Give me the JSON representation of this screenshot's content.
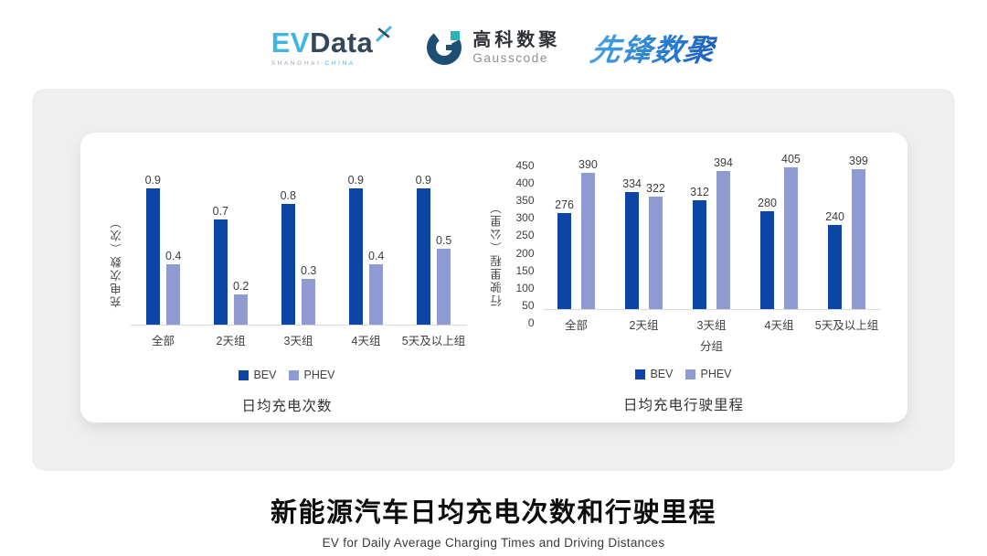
{
  "header": {
    "evdata": {
      "ev": "EV",
      "data": "Data",
      "sub_left": "SHANGHAI",
      "sub_right": "CHINA"
    },
    "gausscode": {
      "cn": "高科数聚",
      "en": "Gausscode"
    },
    "pioneer": {
      "text": "先锋数聚"
    }
  },
  "colors": {
    "bev": "#0c45a5",
    "phev": "#8f9ad0",
    "baseline": "#d9d9d9",
    "panel_background": "#efefef",
    "evdata_cyan": "#3eb6e0",
    "evdata_dark": "#33475c",
    "gausscode_dark_blue": "#1d4f73",
    "gausscode_teal": "#2ab3b8",
    "pioneer_blue": "#2f86d6"
  },
  "chart_data": [
    {
      "type": "bar",
      "title": "日均充电次数",
      "ylabel": "充电次数（次）",
      "xlabel": "",
      "categories": [
        "全部",
        "2天组",
        "3天组",
        "4天组",
        "5天及以上组"
      ],
      "series": [
        {
          "name": "BEV",
          "values": [
            0.9,
            0.7,
            0.8,
            0.9,
            0.9
          ]
        },
        {
          "name": "PHEV",
          "values": [
            0.4,
            0.2,
            0.3,
            0.4,
            0.5
          ]
        }
      ],
      "ylim": [
        0,
        1
      ],
      "value_labels": true,
      "grid": false,
      "legend_position": "bottom"
    },
    {
      "type": "bar",
      "title": "日均充电行驶里程",
      "ylabel": "行驶里程（公里）",
      "xlabel": "分组",
      "categories": [
        "全部",
        "2天组",
        "3天组",
        "4天组",
        "5天及以上组"
      ],
      "series": [
        {
          "name": "BEV",
          "values": [
            276,
            334,
            312,
            280,
            240
          ]
        },
        {
          "name": "PHEV",
          "values": [
            390,
            322,
            394,
            405,
            399
          ]
        }
      ],
      "ylim": [
        0,
        450
      ],
      "yticks": [
        0,
        50,
        100,
        150,
        200,
        250,
        300,
        350,
        400,
        450
      ],
      "value_labels": true,
      "grid": false,
      "legend_position": "bottom"
    }
  ],
  "footer": {
    "title": "新能源汽车日均充电次数和行驶里程",
    "subtitle": "EV for Daily Average Charging Times and Driving Distances"
  }
}
